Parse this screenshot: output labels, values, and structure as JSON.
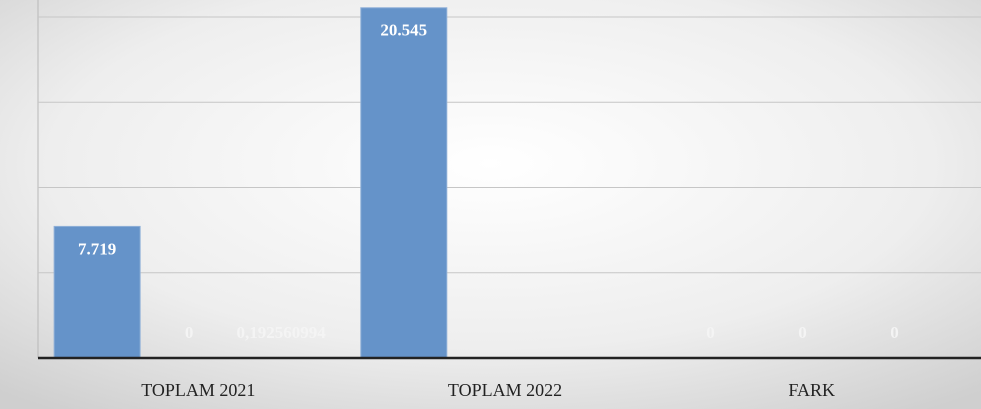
{
  "chart_data": {
    "type": "bar",
    "categories": [
      "TOPLAM 2021",
      "TOPLAM 2022",
      "FARK"
    ],
    "series": [
      {
        "color": "#6593c9",
        "values": [
          7719,
          20545,
          0
        ],
        "value_labels": [
          "7.719",
          "20.545",
          "0"
        ]
      },
      {
        "color": "#e07b39",
        "values": [
          0,
          null,
          0
        ],
        "value_labels": [
          "0",
          null,
          "0"
        ]
      },
      {
        "color": "#a5a5a5",
        "values": [
          0.192560994,
          null,
          0
        ],
        "value_labels": [
          "0,192560994",
          null,
          "0"
        ]
      }
    ],
    "ylim": [
      0,
      21000
    ],
    "yticks": [
      0,
      5000,
      10000,
      15000,
      20000
    ],
    "grid": true
  }
}
